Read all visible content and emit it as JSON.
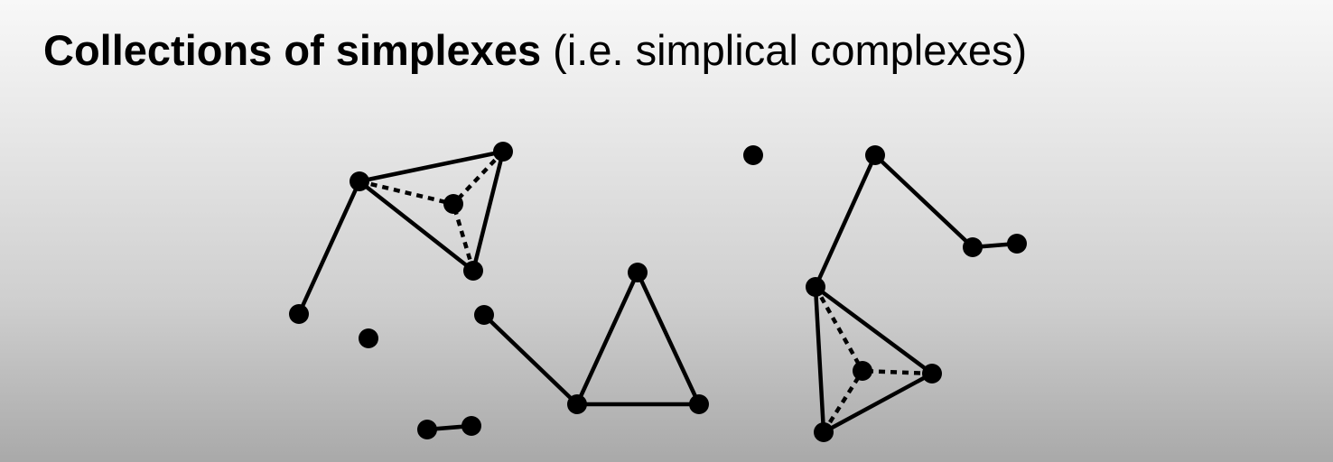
{
  "slide": {
    "title_bold": "Collections of simplexes",
    "title_normal": " (i.e. simplical complexes)"
  },
  "colors": {
    "ink": "#000000",
    "background_top": "#f8f8f8",
    "background_bottom": "#a9a9a9"
  }
}
